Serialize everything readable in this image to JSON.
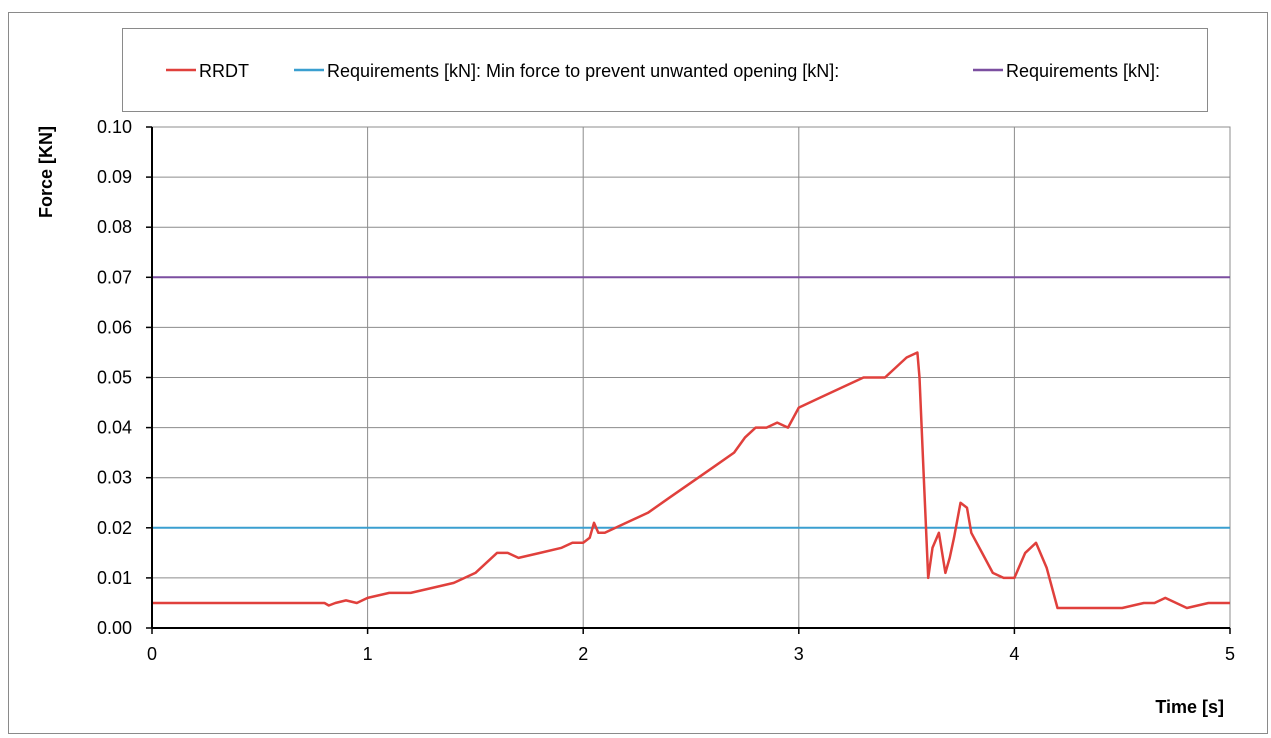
{
  "chart_data": {
    "type": "line",
    "xlabel": "Time [s]",
    "ylabel": "Force [KN]",
    "xlim": [
      0,
      5
    ],
    "ylim": [
      0,
      0.1
    ],
    "x_ticks": [
      "0",
      "1",
      "2",
      "3",
      "4",
      "5"
    ],
    "y_ticks": [
      "0.00",
      "0.01",
      "0.02",
      "0.03",
      "0.04",
      "0.05",
      "0.06",
      "0.07",
      "0.08",
      "0.09",
      "0.10"
    ],
    "grid": true,
    "legend_position": "top",
    "series": [
      {
        "name": "RRDT",
        "color": "#e0403c",
        "x": [
          0,
          0.3,
          0.8,
          0.82,
          0.85,
          0.9,
          0.95,
          1.0,
          1.1,
          1.2,
          1.3,
          1.4,
          1.5,
          1.55,
          1.6,
          1.65,
          1.7,
          1.8,
          1.9,
          1.95,
          2.0,
          2.03,
          2.05,
          2.07,
          2.1,
          2.2,
          2.3,
          2.4,
          2.5,
          2.6,
          2.7,
          2.75,
          2.8,
          2.85,
          2.9,
          2.95,
          3.0,
          3.1,
          3.2,
          3.3,
          3.4,
          3.45,
          3.5,
          3.55,
          3.56,
          3.58,
          3.6,
          3.62,
          3.65,
          3.68,
          3.7,
          3.72,
          3.75,
          3.78,
          3.8,
          3.85,
          3.9,
          3.95,
          4.0,
          4.05,
          4.1,
          4.15,
          4.2,
          4.3,
          4.5,
          4.6,
          4.65,
          4.7,
          4.8,
          4.9,
          5.0
        ],
        "values": [
          0.005,
          0.005,
          0.005,
          0.0045,
          0.005,
          0.0055,
          0.005,
          0.006,
          0.007,
          0.007,
          0.008,
          0.009,
          0.011,
          0.013,
          0.015,
          0.015,
          0.014,
          0.015,
          0.016,
          0.017,
          0.017,
          0.018,
          0.021,
          0.019,
          0.019,
          0.021,
          0.023,
          0.026,
          0.029,
          0.032,
          0.035,
          0.038,
          0.04,
          0.04,
          0.041,
          0.04,
          0.044,
          0.046,
          0.048,
          0.05,
          0.05,
          0.052,
          0.054,
          0.055,
          0.05,
          0.03,
          0.01,
          0.016,
          0.019,
          0.011,
          0.014,
          0.018,
          0.025,
          0.024,
          0.019,
          0.015,
          0.011,
          0.01,
          0.01,
          0.015,
          0.017,
          0.012,
          0.004,
          0.004,
          0.004,
          0.005,
          0.005,
          0.006,
          0.004,
          0.005,
          0.005
        ]
      },
      {
        "name": "Requirements [kN]: Min force to prevent unwanted opening [kN]:",
        "color": "#3a9fd0",
        "x": [
          0,
          5
        ],
        "values": [
          0.02,
          0.02
        ]
      },
      {
        "name": "Requirements [kN]:",
        "color": "#7b4fa0",
        "x": [
          0,
          5
        ],
        "values": [
          0.07,
          0.07
        ]
      }
    ]
  }
}
